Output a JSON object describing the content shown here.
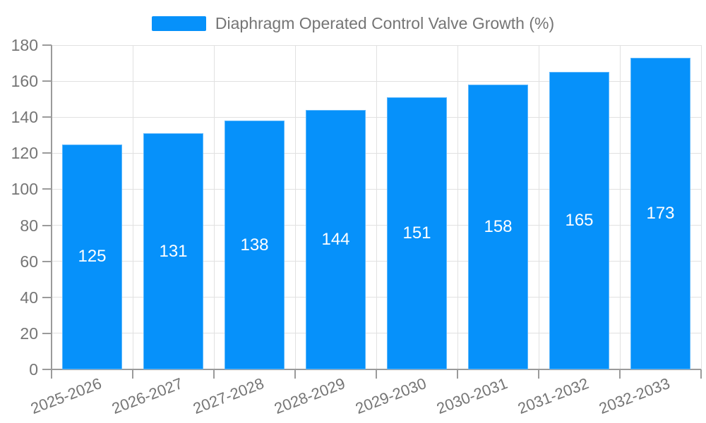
{
  "chart_data": {
    "type": "bar",
    "title": "Diaphragm Operated Control Valve Growth (%)",
    "categories": [
      "2025-2026",
      "2026-2027",
      "2027-2028",
      "2028-2029",
      "2029-2030",
      "2030-2031",
      "2031-2032",
      "2032-2033"
    ],
    "series": [
      {
        "name": "Diaphragm Operated Control Valve Growth (%)",
        "values": [
          125,
          131,
          138,
          144,
          151,
          158,
          165,
          173
        ]
      }
    ],
    "xlabel": "",
    "ylabel": "",
    "ylim": [
      0,
      180
    ],
    "ytick_step": 20,
    "yticks": [
      0,
      20,
      40,
      60,
      80,
      100,
      120,
      140,
      160,
      180
    ],
    "grid": true,
    "legend_position": "top-center",
    "value_labels": "centered-inside-bars",
    "x_label_rotation_deg": -21,
    "colors": {
      "bar": "#0691fa",
      "value_label": "#ffffff",
      "axis": "#9b9b9b",
      "gridline": "#e1e1e1",
      "text": "#757575",
      "background": "#ffffff"
    }
  }
}
